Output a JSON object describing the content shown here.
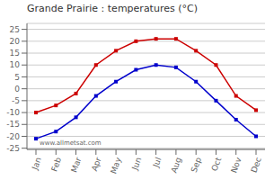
{
  "chart_data": {
    "type": "line",
    "title": "Grande Prairie : temperatures (°C)",
    "categories": [
      "Jan",
      "Feb",
      "Mar",
      "Apr",
      "May",
      "Jun",
      "Jul",
      "Aug",
      "Sep",
      "Oct",
      "Nov",
      "Dec"
    ],
    "series": [
      {
        "color": "#cc0000",
        "values": [
          -10,
          -7,
          -2,
          10,
          16,
          20,
          21,
          21,
          16,
          10,
          -3,
          -9
        ],
        "marker": "square"
      },
      {
        "color": "#0000cc",
        "values": [
          -21,
          -18,
          -12,
          -3,
          3,
          8,
          10,
          9,
          3,
          -5,
          -13,
          -20
        ],
        "marker": "square"
      }
    ],
    "ylim": [
      -25.5,
      27.5
    ],
    "yticks": [
      -25,
      -20,
      -15,
      -10,
      -5,
      0,
      5,
      10,
      15,
      20,
      25
    ],
    "grid": true,
    "annotations": [
      "www.allmetsat.com"
    ]
  }
}
